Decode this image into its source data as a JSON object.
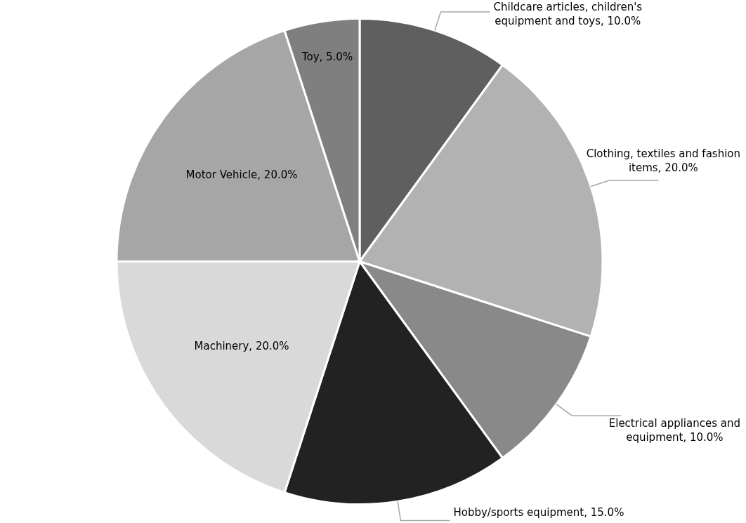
{
  "chart_data": {
    "type": "pie",
    "categories": [
      "Childcare articles, children's equipment and toys",
      "Clothing, textiles and fashion items",
      "Electrical appliances and equipment",
      "Hobby/sports equipment",
      "Machinery",
      "Motor Vehicle",
      "Toy"
    ],
    "values": [
      10,
      20,
      10,
      15,
      20,
      20,
      5
    ],
    "value_labels": [
      "10.0%",
      "20.0%",
      "10.0%",
      "15.0%",
      "20.0%",
      "20.0%",
      "5.0%"
    ],
    "colors": [
      "#5f5f5f",
      "#b2b2b2",
      "#898989",
      "#222222",
      "#d9d9d9",
      "#a6a6a6",
      "#7f7f7f"
    ],
    "legend": false
  }
}
